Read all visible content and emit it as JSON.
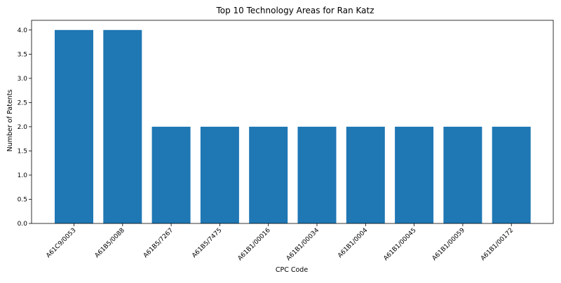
{
  "chart_data": {
    "type": "bar",
    "title": "Top 10 Technology Areas for Ran Katz",
    "xlabel": "CPC Code",
    "ylabel": "Number of Patents",
    "categories": [
      "A61C9/0053",
      "A61B5/0088",
      "A61B5/7267",
      "A61B5/7475",
      "A61B1/00016",
      "A61B1/00034",
      "A61B1/0004",
      "A61B1/00045",
      "A61B1/00059",
      "A61B1/00172"
    ],
    "values": [
      4,
      4,
      2,
      2,
      2,
      2,
      2,
      2,
      2,
      2
    ],
    "ylim": [
      0,
      4.2
    ],
    "yticks": [
      "0.0",
      "0.5",
      "1.0",
      "1.5",
      "2.0",
      "2.5",
      "3.0",
      "3.5",
      "4.0"
    ],
    "grid": false,
    "legend": "none",
    "colors": {
      "bar": "#1f77b4",
      "axis": "#000000",
      "background": "#ffffff"
    }
  }
}
